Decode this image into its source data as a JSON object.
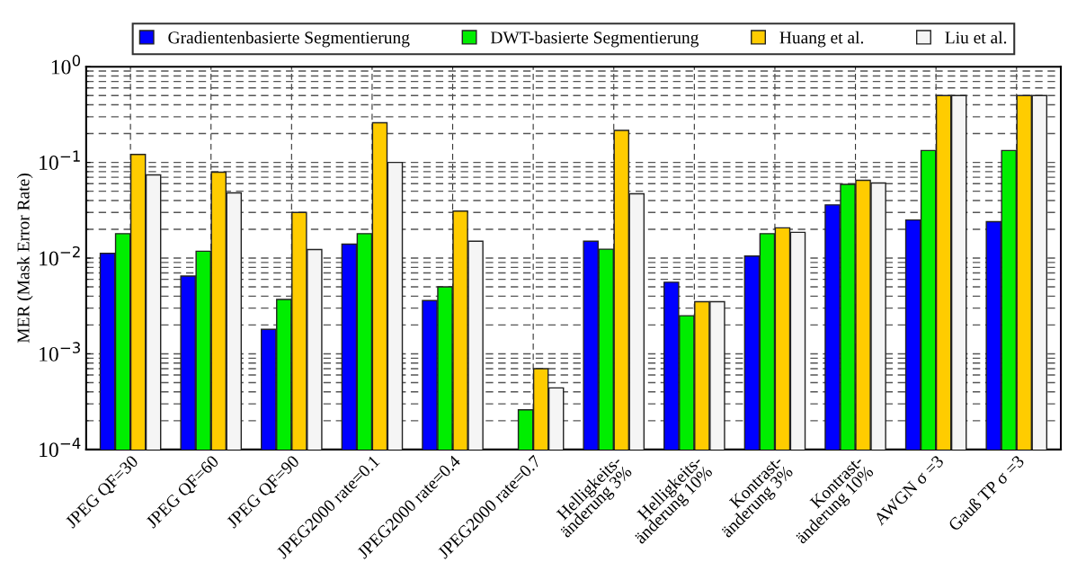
{
  "chart_data": {
    "type": "bar",
    "ylabel": "MER (Mask Error Rate)",
    "log": "y",
    "grid": true,
    "legend": "top",
    "categories": [
      "JPEG QF=30",
      "JPEG QF=60",
      "JPEG QF=90",
      "JPEG2000 rate=0.1",
      "JPEG2000 rate=0.4",
      "JPEG2000 rate=0.7",
      "Helligkeits-\nänderung 3%",
      "Helligkeits-\nänderung 10%",
      "Kontrast-\nänderung 3%",
      "Kontrast-\nänderung 10%",
      "AWGN σ =3",
      "Gauß TP σ =3"
    ],
    "ylim": [
      0.0001,
      1
    ],
    "yticks": [
      {
        "value": 0.0001,
        "label": "10$^{−4}$"
      },
      {
        "value": 0.001,
        "label": "10$^{−3}$"
      },
      {
        "value": 0.01,
        "label": "10$^{−2}$"
      },
      {
        "value": 0.1,
        "label": "10$^{−1}$"
      },
      {
        "value": 1,
        "label": "10$^{0}$"
      }
    ],
    "series": [
      {
        "name": "Gradientenbasierte Segmentierung",
        "color": "#0000ff",
        "values": [
          0.0112,
          0.0065,
          0.0018,
          0.014,
          0.0036,
          null,
          0.015,
          0.0056,
          0.0105,
          0.036,
          0.025,
          0.024
        ]
      },
      {
        "name": "DWT-basierte Segmentierung",
        "color": "#00ee00",
        "values": [
          0.018,
          0.0118,
          0.0037,
          0.018,
          0.005,
          0.00026,
          0.0124,
          0.0025,
          0.018,
          0.059,
          0.133,
          0.133
        ]
      },
      {
        "name": "Huang et al.",
        "color": "#ffcc00",
        "values": [
          0.121,
          0.079,
          0.03,
          0.26,
          0.031,
          0.0007,
          0.216,
          0.0035,
          0.0207,
          0.065,
          0.5,
          0.5
        ]
      },
      {
        "name": "Liu et al.",
        "color": "#f5f5f5",
        "values": [
          0.074,
          0.048,
          0.0123,
          0.1,
          0.015,
          0.00044,
          0.047,
          0.0035,
          0.0186,
          0.061,
          0.5,
          0.5
        ]
      }
    ]
  }
}
